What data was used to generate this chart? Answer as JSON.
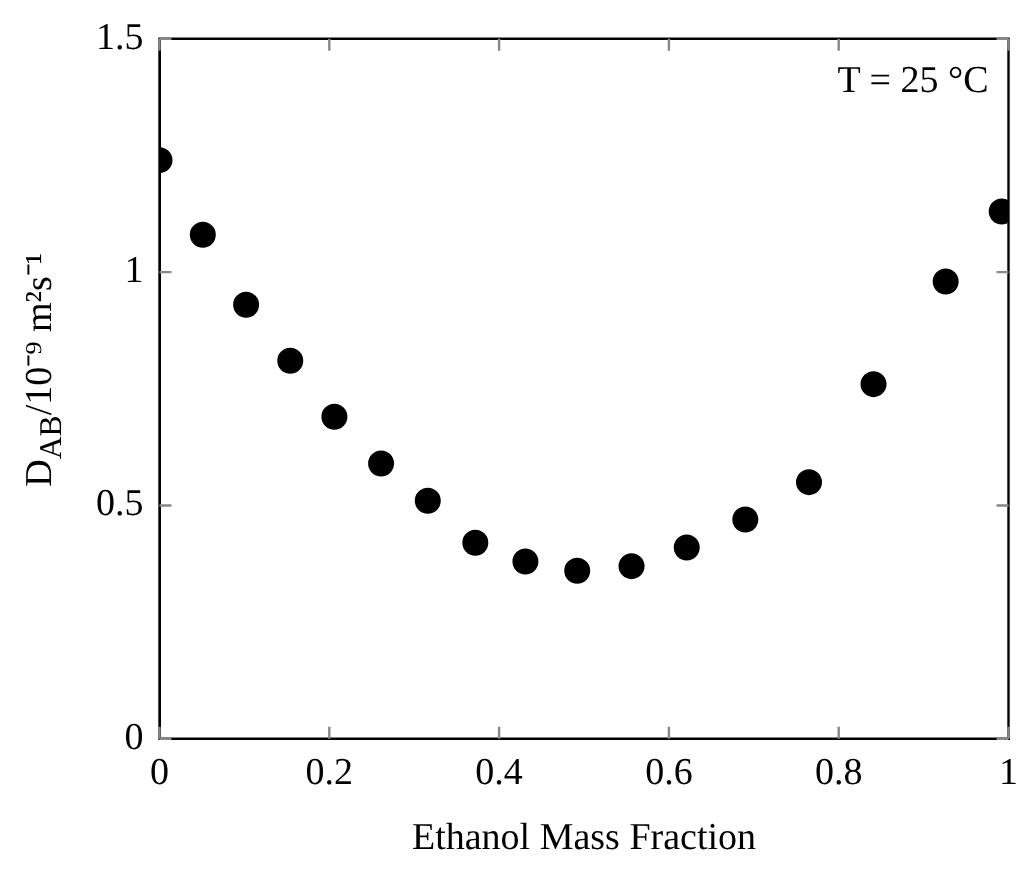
{
  "chart_data": {
    "type": "scatter",
    "xlabel": "Ethanol Mass Fraction",
    "ylabel": "D$_{AB}$/10⁻⁹ m²s⁻¹",
    "annotations": [
      "T = 25 °C"
    ],
    "x": [
      0,
      0.051,
      0.102,
      0.154,
      0.206,
      0.261,
      0.316,
      0.372,
      0.431,
      0.492,
      0.556,
      0.621,
      0.69,
      0.765,
      0.841,
      0.926,
      0.992
    ],
    "series": [
      {
        "color": "#000000",
        "values": [
          1.24,
          1.08,
          0.93,
          0.81,
          0.69,
          0.59,
          0.51,
          0.42,
          0.38,
          0.36,
          0.37,
          0.41,
          0.47,
          0.55,
          0.76,
          0.98,
          1.13
        ]
      }
    ],
    "xlim": [
      0,
      1
    ],
    "xticks": [
      0,
      0.2,
      0.4,
      0.6,
      0.8,
      1
    ],
    "ylim": [
      0,
      1.5
    ],
    "yticks": [
      0,
      0.5,
      1,
      1.5
    ],
    "marker": "circle",
    "grid": false,
    "legend": false
  }
}
